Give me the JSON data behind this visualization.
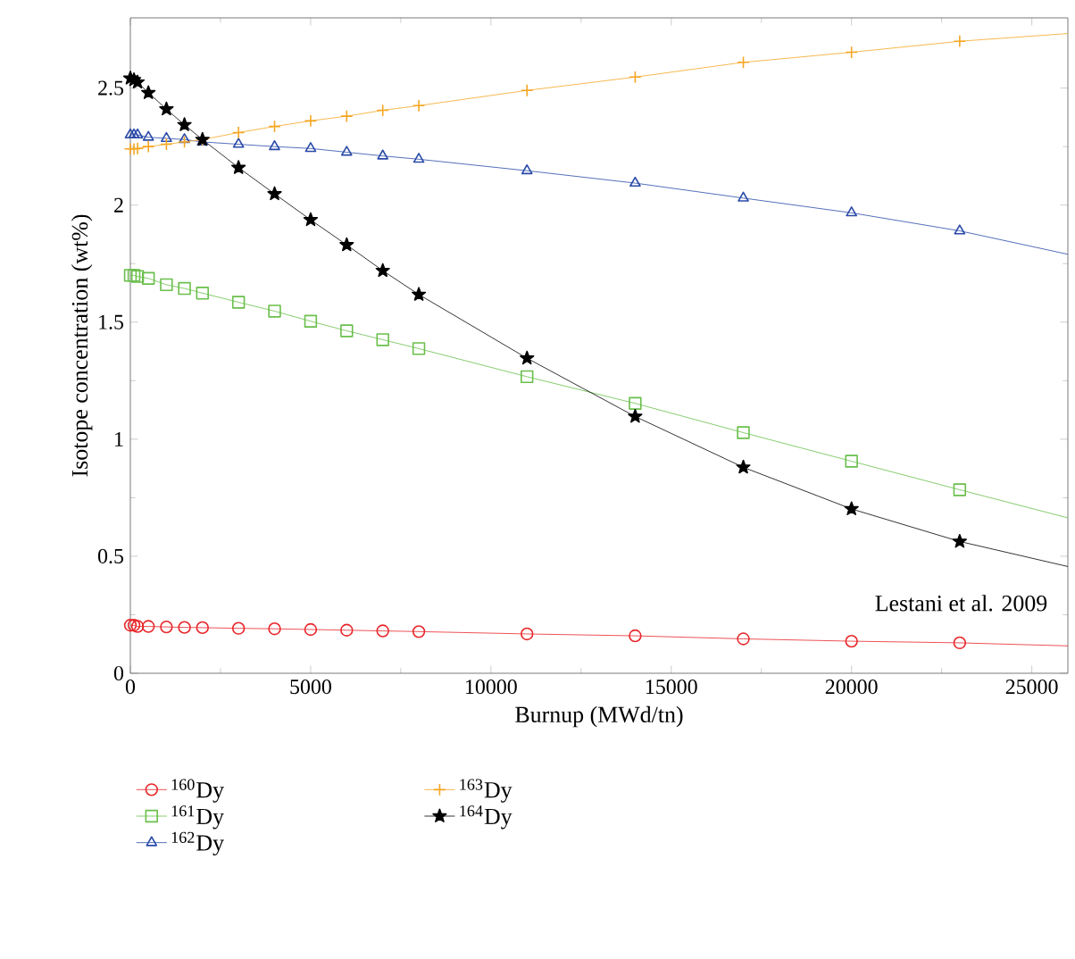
{
  "chart_data": {
    "type": "line",
    "xlabel": "Burnup (MWd/tn)",
    "ylabel": "Isotope concentration (wt%)",
    "xlim": [
      0,
      26000
    ],
    "ylim": [
      0,
      2.8
    ],
    "xticks": [
      0,
      5000,
      10000,
      15000,
      20000,
      25000
    ],
    "yticks": [
      0,
      0.5,
      1,
      1.5,
      2,
      2.5
    ],
    "legend": "bottom",
    "annotations": [
      "Lestani et al. 2009"
    ],
    "series": [
      {
        "name": "$^{160}$Dy",
        "color": "#e8262a",
        "marker": "circle",
        "x": [
          0,
          100,
          200,
          500,
          1000,
          1500,
          2000,
          3000,
          4000,
          5000,
          6000,
          7000,
          8000,
          11000,
          14000,
          17000,
          20000,
          23000
        ],
        "values": [
          0.205,
          0.205,
          0.2,
          0.2,
          0.198,
          0.196,
          0.195,
          0.192,
          0.19,
          0.187,
          0.184,
          0.181,
          0.178,
          0.168,
          0.16,
          0.147,
          0.137,
          0.13
        ]
      },
      {
        "name": "$^{161}$Dy",
        "color": "#6abf4b",
        "marker": "square",
        "x": [
          0,
          100,
          200,
          500,
          1000,
          1500,
          2000,
          3000,
          4000,
          5000,
          6000,
          7000,
          8000,
          11000,
          14000,
          17000,
          20000,
          23000
        ],
        "values": [
          1.7,
          1.7,
          1.695,
          1.687,
          1.66,
          1.644,
          1.624,
          1.585,
          1.547,
          1.504,
          1.463,
          1.425,
          1.387,
          1.267,
          1.153,
          1.028,
          0.906,
          0.784
        ]
      },
      {
        "name": "$^{162}$Dy",
        "color": "#2a4aa8",
        "marker": "triangle",
        "x": [
          0,
          100,
          200,
          500,
          1000,
          1500,
          2000,
          3000,
          4000,
          5000,
          6000,
          7000,
          8000,
          11000,
          14000,
          17000,
          20000,
          23000
        ],
        "values": [
          2.3,
          2.3,
          2.3,
          2.29,
          2.285,
          2.28,
          2.27,
          2.26,
          2.25,
          2.242,
          2.226,
          2.21,
          2.196,
          2.147,
          2.094,
          2.03,
          1.967,
          1.89
        ]
      },
      {
        "name": "$^{163}$Dy",
        "color": "#f5a623",
        "marker": "cross",
        "x": [
          0,
          100,
          200,
          500,
          1000,
          1500,
          2000,
          3000,
          4000,
          5000,
          6000,
          7000,
          8000,
          11000,
          14000,
          17000,
          20000,
          23000
        ],
        "values": [
          2.24,
          2.24,
          2.242,
          2.25,
          2.26,
          2.27,
          2.28,
          2.31,
          2.336,
          2.36,
          2.38,
          2.405,
          2.425,
          2.49,
          2.547,
          2.61,
          2.653,
          2.7
        ]
      },
      {
        "name": "$^{164}$Dy",
        "color": "#000000",
        "marker": "star",
        "x": [
          0,
          100,
          200,
          500,
          1000,
          1500,
          2000,
          3000,
          4000,
          5000,
          6000,
          7000,
          8000,
          11000,
          14000,
          17000,
          20000,
          23000
        ],
        "values": [
          2.542,
          2.535,
          2.525,
          2.48,
          2.41,
          2.343,
          2.28,
          2.16,
          2.048,
          1.937,
          1.83,
          1.72,
          1.618,
          1.346,
          1.097,
          0.88,
          0.702,
          0.563
        ]
      },
      {
        "color": "#e8262a",
        "marker": "none",
        "x": [
          23000,
          26000
        ],
        "values": [
          0.13,
          0.117
        ]
      },
      {
        "color": "#6abf4b",
        "marker": "none",
        "x": [
          23000,
          26000
        ],
        "values": [
          0.784,
          0.664
        ]
      },
      {
        "color": "#2a4aa8",
        "marker": "none",
        "x": [
          23000,
          26000
        ],
        "values": [
          1.89,
          1.79
        ]
      },
      {
        "color": "#f5a623",
        "marker": "none",
        "x": [
          23000,
          26000
        ],
        "values": [
          2.7,
          2.733
        ]
      },
      {
        "color": "#000000",
        "marker": "none",
        "x": [
          23000,
          26000
        ],
        "values": [
          0.563,
          0.456
        ]
      }
    ]
  }
}
